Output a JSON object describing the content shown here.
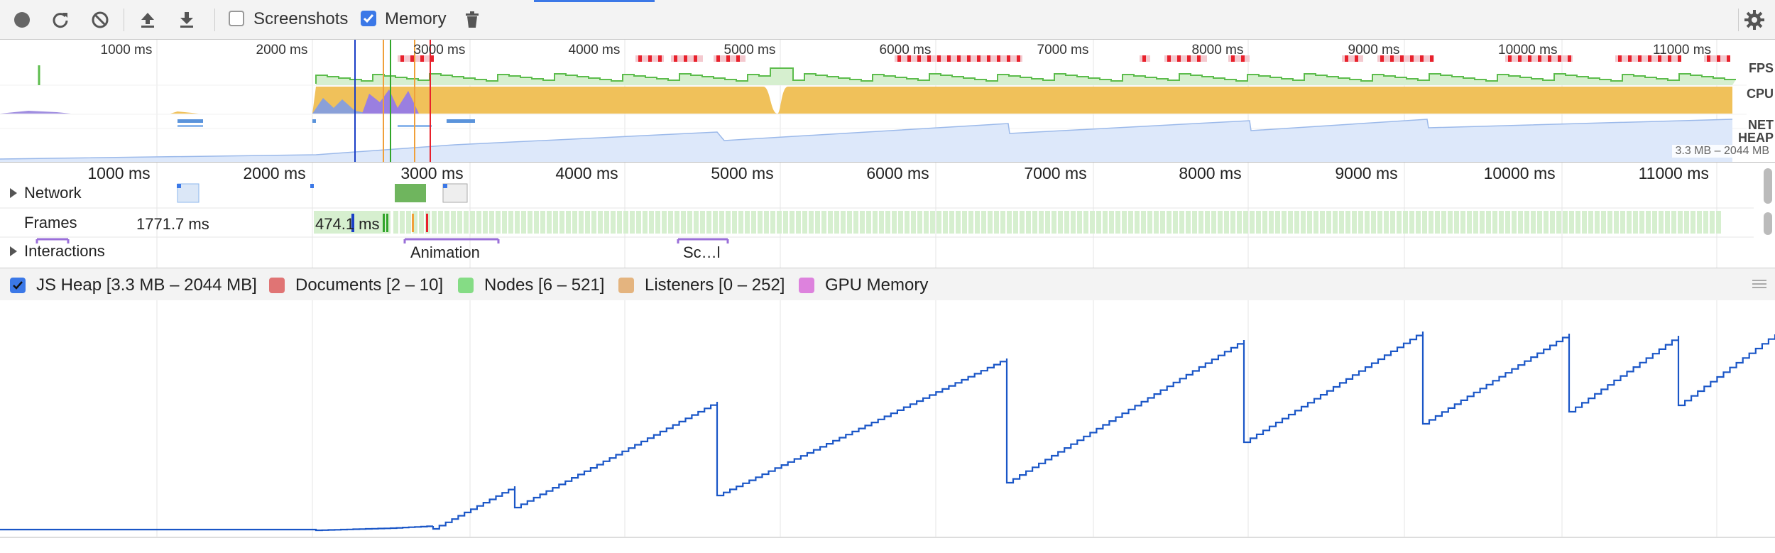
{
  "toolbar": {
    "screenshots_label": "Screenshots",
    "memory_label": "Memory",
    "buttons": [
      "record-icon",
      "reload-icon",
      "clear-icon",
      "load-profile-icon",
      "save-profile-icon",
      "trash-icon"
    ],
    "settings_icon": "gear-icon"
  },
  "overview": {
    "ticks": [
      "1000 ms",
      "2000 ms",
      "3000 ms",
      "4000 ms",
      "5000 ms",
      "6000 ms",
      "7000 ms",
      "8000 ms",
      "9000 ms",
      "10000 ms",
      "11000 ms"
    ],
    "tracks": {
      "fps": "FPS",
      "cpu": "CPU",
      "net": "NET",
      "heap": "HEAP"
    },
    "heap_range": "3.3 MB – 2044 MB"
  },
  "flame": {
    "ticks": [
      "1000 ms",
      "2000 ms",
      "3000 ms",
      "4000 ms",
      "5000 ms",
      "6000 ms",
      "7000 ms",
      "8000 ms",
      "9000 ms",
      "10000 ms",
      "11000 ms"
    ],
    "network_label": "Network",
    "frames_label": "Frames",
    "interactions_label": "Interactions",
    "frame_time_1": "1771.7 ms",
    "frame_time_2": "474.1 ms",
    "interaction_animation": "Animation",
    "interaction_scroll": "Sc…l"
  },
  "counters": {
    "js_heap": "JS Heap [3.3 MB – 2044 MB]",
    "documents": "Documents [2 – 10]",
    "nodes": "Nodes [6 – 521]",
    "listeners": "Listeners [0 – 252]",
    "gpu_memory": "GPU Memory"
  },
  "colors": {
    "accent": "#3b78e7",
    "heap_line": "#1a56c7",
    "documents": "#e07474",
    "nodes": "#85dc85",
    "listeners": "#e4b47f",
    "gpu": "#dd82dd",
    "cpu_scripting": "#f0c15a",
    "cpu_rendering": "#9a7fe0",
    "fps": "#5cbc4c"
  }
}
